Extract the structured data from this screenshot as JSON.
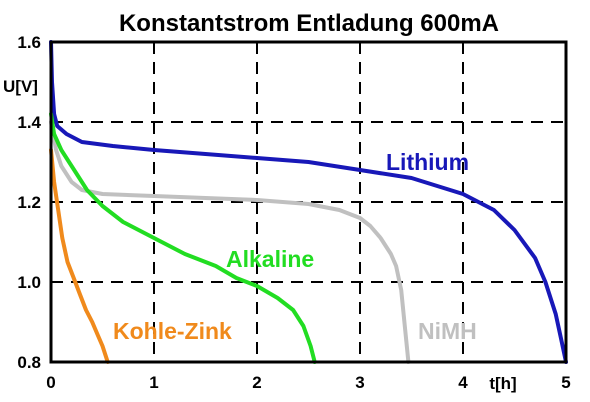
{
  "chart_data": {
    "type": "line",
    "title": "Konstantstrom Entladung 600mA",
    "xlabel": "t[h]",
    "ylabel": "U[V]",
    "xlim": [
      0,
      5
    ],
    "ylim": [
      0.8,
      1.6
    ],
    "x_ticks": [
      "0",
      "1",
      "2",
      "3",
      "4",
      "5"
    ],
    "y_ticks": [
      "0.8",
      "1.0",
      "1.2",
      "1.4",
      "1.6"
    ],
    "grid": true,
    "series": [
      {
        "name": "Lithium",
        "color": "#1818b8",
        "points": [
          [
            0,
            1.6
          ],
          [
            0.01,
            1.5
          ],
          [
            0.03,
            1.42
          ],
          [
            0.06,
            1.39
          ],
          [
            0.15,
            1.37
          ],
          [
            0.3,
            1.35
          ],
          [
            0.6,
            1.34
          ],
          [
            1.0,
            1.33
          ],
          [
            1.5,
            1.32
          ],
          [
            2.0,
            1.31
          ],
          [
            2.5,
            1.3
          ],
          [
            3.0,
            1.28
          ],
          [
            3.5,
            1.26
          ],
          [
            4.0,
            1.22
          ],
          [
            4.3,
            1.18
          ],
          [
            4.5,
            1.13
          ],
          [
            4.7,
            1.06
          ],
          [
            4.8,
            1.0
          ],
          [
            4.9,
            0.92
          ],
          [
            4.95,
            0.86
          ],
          [
            5.0,
            0.8
          ]
        ]
      },
      {
        "name": "NiMH",
        "color": "#c0c0c0",
        "points": [
          [
            0,
            1.4
          ],
          [
            0.02,
            1.37
          ],
          [
            0.05,
            1.33
          ],
          [
            0.1,
            1.29
          ],
          [
            0.2,
            1.25
          ],
          [
            0.3,
            1.23
          ],
          [
            0.5,
            1.22
          ],
          [
            1.0,
            1.215
          ],
          [
            1.5,
            1.21
          ],
          [
            2.0,
            1.205
          ],
          [
            2.5,
            1.195
          ],
          [
            2.8,
            1.18
          ],
          [
            3.0,
            1.16
          ],
          [
            3.1,
            1.14
          ],
          [
            3.2,
            1.11
          ],
          [
            3.3,
            1.07
          ],
          [
            3.35,
            1.04
          ],
          [
            3.4,
            0.98
          ],
          [
            3.45,
            0.85
          ],
          [
            3.47,
            0.8
          ]
        ]
      },
      {
        "name": "Alkaline",
        "color": "#22dd22",
        "points": [
          [
            0,
            1.42
          ],
          [
            0.03,
            1.37
          ],
          [
            0.1,
            1.33
          ],
          [
            0.2,
            1.29
          ],
          [
            0.35,
            1.23
          ],
          [
            0.5,
            1.19
          ],
          [
            0.7,
            1.15
          ],
          [
            1.0,
            1.11
          ],
          [
            1.3,
            1.07
          ],
          [
            1.6,
            1.04
          ],
          [
            1.8,
            1.01
          ],
          [
            2.0,
            0.99
          ],
          [
            2.2,
            0.96
          ],
          [
            2.35,
            0.93
          ],
          [
            2.45,
            0.89
          ],
          [
            2.52,
            0.84
          ],
          [
            2.56,
            0.8
          ]
        ]
      },
      {
        "name": "Kohle-Zink",
        "color": "#f08a1c",
        "points": [
          [
            0,
            1.33
          ],
          [
            0.03,
            1.25
          ],
          [
            0.07,
            1.18
          ],
          [
            0.11,
            1.11
          ],
          [
            0.16,
            1.05
          ],
          [
            0.22,
            1.01
          ],
          [
            0.28,
            0.97
          ],
          [
            0.34,
            0.93
          ],
          [
            0.4,
            0.9
          ],
          [
            0.45,
            0.87
          ],
          [
            0.5,
            0.84
          ],
          [
            0.55,
            0.8
          ]
        ]
      }
    ],
    "annotations": [
      {
        "text": "Lithium",
        "color": "#1818b8"
      },
      {
        "text": "Alkaline",
        "color": "#22dd22"
      },
      {
        "text": "NiMH",
        "color": "#c0c0c0"
      },
      {
        "text": "Kohle-Zink",
        "color": "#f08a1c"
      }
    ]
  }
}
